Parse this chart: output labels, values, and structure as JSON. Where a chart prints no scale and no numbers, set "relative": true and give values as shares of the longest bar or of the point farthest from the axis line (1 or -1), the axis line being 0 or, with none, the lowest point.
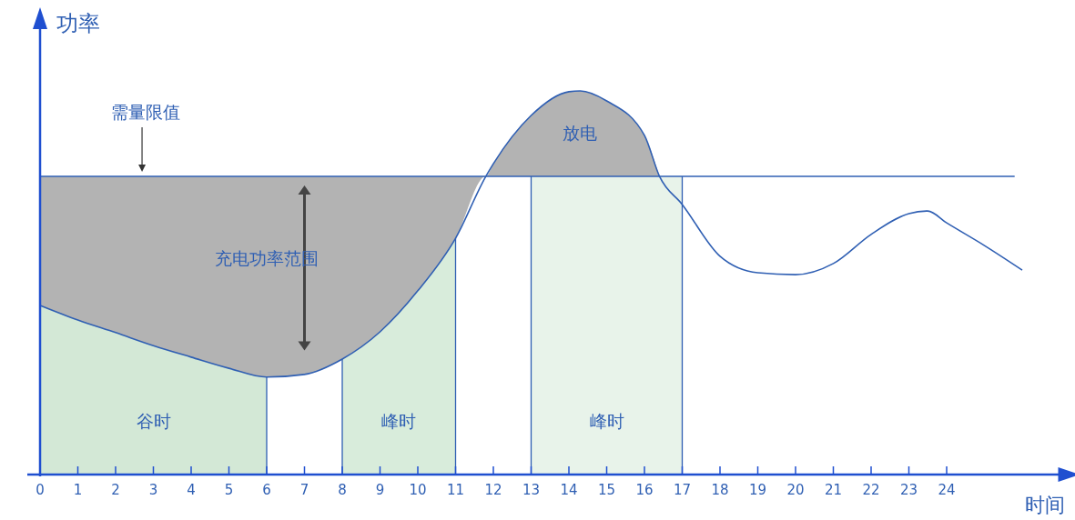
{
  "chart_data": {
    "type": "line",
    "relative": true,
    "xlabel": "时间",
    "ylabel": "功率",
    "xlim": [
      0,
      27
    ],
    "xticks": [
      0,
      1,
      2,
      3,
      4,
      5,
      6,
      7,
      8,
      9,
      10,
      11,
      12,
      13,
      14,
      15,
      16,
      17,
      18,
      19,
      20,
      21,
      22,
      23,
      24
    ],
    "tick_labels": "x",
    "line_style": "solid",
    "series": [
      {
        "color": "#2f5fb3",
        "x": [
          0,
          1,
          2,
          3,
          4,
          5,
          6,
          7,
          8,
          9,
          10,
          11,
          11.8,
          12,
          13,
          14,
          14.3,
          15,
          16,
          16.4,
          17,
          18,
          19,
          20,
          21,
          22,
          23,
          23.5,
          24,
          25,
          26
        ],
        "values": [
          0.441,
          0.403,
          0.37,
          0.336,
          0.306,
          0.277,
          0.254,
          0.261,
          0.301,
          0.372,
          0.479,
          0.616,
          0.777,
          0.81,
          0.936,
          0.998,
          1,
          0.974,
          0.884,
          0.777,
          0.704,
          0.569,
          0.526,
          0.521,
          0.55,
          0.626,
          0.68,
          0.687,
          0.656,
          0.597,
          0.533
        ],
        "lower": [
          0.441,
          0.403,
          0.37,
          0.336,
          0.306,
          0.277,
          0.254,
          0.261,
          0.301,
          0.372,
          0.479,
          0.616,
          0.777,
          0.777,
          0.777,
          0.777,
          0.777,
          0.777,
          0.777,
          0.777,
          null,
          null,
          null,
          null,
          null,
          null,
          null,
          null,
          null,
          null,
          null
        ],
        "upper": [
          0.777,
          0.777,
          0.777,
          0.777,
          0.777,
          0.777,
          0.777,
          0.777,
          0.777,
          0.777,
          0.777,
          0.777,
          0.777,
          0.81,
          0.936,
          0.998,
          1,
          0.974,
          0.884,
          0.777,
          null,
          null,
          null,
          null,
          null,
          null,
          null,
          null,
          null,
          null,
          null
        ]
      }
    ],
    "ref_lines": [
      {
        "axis": "y",
        "value": 0.777,
        "label": "需量限值",
        "color": "#2f5fb3"
      }
    ],
    "bands": [
      {
        "axis": "x",
        "from": 0,
        "to": 6,
        "label": "谷时",
        "color": "#d3e8d6"
      },
      {
        "axis": "x",
        "from": 8,
        "to": 11,
        "label": "峰时",
        "color": "#d8ecdb"
      },
      {
        "axis": "x",
        "from": 13,
        "to": 17,
        "label": "峰时",
        "color": "#e8f3ea"
      }
    ],
    "annotations": [
      "充电功率范围",
      "放电"
    ]
  }
}
